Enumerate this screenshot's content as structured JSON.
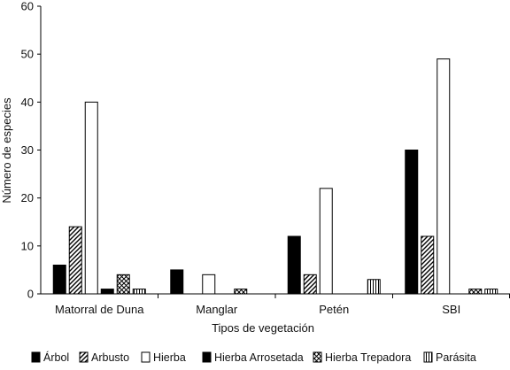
{
  "chart_data": {
    "type": "bar",
    "title": "",
    "xlabel": "Tipos de vegetación",
    "ylabel": "Número de especies",
    "ylim": [
      0,
      60
    ],
    "yticks": [
      0,
      10,
      20,
      30,
      40,
      50,
      60
    ],
    "grid": false,
    "legend_position": "bottom",
    "categories": [
      "Matorral de Duna",
      "Manglar",
      "Petén",
      "SBI"
    ],
    "series": [
      {
        "name": "Árbol",
        "pattern": "solid-black",
        "values": [
          6,
          5,
          12,
          30
        ]
      },
      {
        "name": "Arbusto",
        "pattern": "diagonal-hatch",
        "values": [
          14,
          0,
          4,
          12
        ]
      },
      {
        "name": "Hierba",
        "pattern": "white",
        "values": [
          40,
          4,
          22,
          49
        ]
      },
      {
        "name": "Hierba Arrosetada",
        "pattern": "solid-black",
        "values": [
          1,
          0,
          0,
          0
        ]
      },
      {
        "name": "Hierba Trepadora",
        "pattern": "cross-hatch",
        "values": [
          4,
          1,
          0,
          1
        ]
      },
      {
        "name": "Parásita",
        "pattern": "vertical-lines",
        "values": [
          1,
          0,
          3,
          1
        ]
      }
    ]
  }
}
